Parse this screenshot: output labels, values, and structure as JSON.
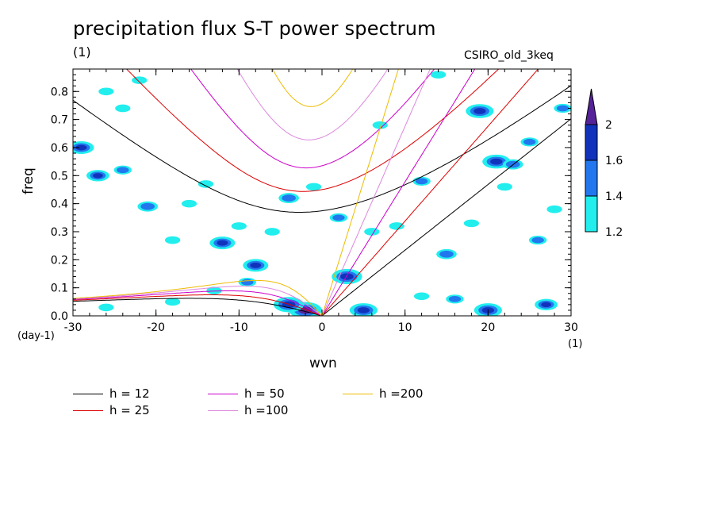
{
  "chart_data": {
    "type": "heatmap",
    "title": "precipitation flux S-T power spectrum",
    "subtitle_left": "(1)",
    "subtitle_right": "CSIRO_old_3keq",
    "xlabel": "wvn",
    "ylabel": "freq",
    "xunit": "(1)",
    "yunit": "(day-1)",
    "xlim": [
      -30,
      30
    ],
    "ylim": [
      0,
      0.88
    ],
    "xticks": [
      -30,
      -20,
      -10,
      0,
      10,
      20,
      30
    ],
    "yticks": [
      0.0,
      0.1,
      0.2,
      0.3,
      0.4,
      0.5,
      0.6,
      0.7,
      0.8
    ],
    "ytick_labels": [
      "0.0",
      "0.1",
      "0.2",
      "0.3",
      "0.4",
      "0.5",
      "0.6",
      "0.7",
      "0.8"
    ],
    "colorbar": {
      "levels": [
        1.2,
        1.4,
        1.6,
        2
      ],
      "colors": [
        "#22eeee",
        "#2277ee",
        "#1133bb",
        "#552299"
      ]
    },
    "dispersion_curves": [
      {
        "name": "h = 12",
        "h": 12,
        "color": "#000000"
      },
      {
        "name": "h = 25",
        "h": 25,
        "color": "#dd0000"
      },
      {
        "name": "h = 50",
        "h": 50,
        "color": "#cc00cc"
      },
      {
        "name": "h =100",
        "h": 100,
        "color": "#dd88dd"
      },
      {
        "name": "h =200",
        "h": 200,
        "color": "#eebb00"
      }
    ],
    "contour_blobs": [
      {
        "x": -26,
        "y": 0.8,
        "v": 1.3
      },
      {
        "x": -24,
        "y": 0.74,
        "v": 1.3
      },
      {
        "x": -22,
        "y": 0.84,
        "v": 1.3
      },
      {
        "x": -29,
        "y": 0.6,
        "v": 1.7
      },
      {
        "x": -24,
        "y": 0.52,
        "v": 1.4
      },
      {
        "x": -27,
        "y": 0.5,
        "v": 1.6
      },
      {
        "x": -21,
        "y": 0.39,
        "v": 1.5
      },
      {
        "x": -16,
        "y": 0.4,
        "v": 1.3
      },
      {
        "x": -18,
        "y": 0.27,
        "v": 1.3
      },
      {
        "x": -14,
        "y": 0.47,
        "v": 1.3
      },
      {
        "x": -12,
        "y": 0.26,
        "v": 1.7
      },
      {
        "x": -10,
        "y": 0.32,
        "v": 1.3
      },
      {
        "x": -8,
        "y": 0.18,
        "v": 1.7
      },
      {
        "x": -6,
        "y": 0.3,
        "v": 1.3
      },
      {
        "x": -4,
        "y": 0.42,
        "v": 1.5
      },
      {
        "x": -2,
        "y": 0.02,
        "v": 2.0
      },
      {
        "x": -4,
        "y": 0.04,
        "v": 1.9
      },
      {
        "x": 3,
        "y": 0.14,
        "v": 1.9
      },
      {
        "x": 5,
        "y": 0.02,
        "v": 1.8
      },
      {
        "x": 2,
        "y": 0.35,
        "v": 1.4
      },
      {
        "x": 6,
        "y": 0.3,
        "v": 1.3
      },
      {
        "x": 9,
        "y": 0.32,
        "v": 1.3
      },
      {
        "x": 12,
        "y": 0.48,
        "v": 1.4
      },
      {
        "x": 15,
        "y": 0.22,
        "v": 1.5
      },
      {
        "x": 18,
        "y": 0.33,
        "v": 1.3
      },
      {
        "x": 19,
        "y": 0.73,
        "v": 1.8
      },
      {
        "x": 21,
        "y": 0.55,
        "v": 1.8
      },
      {
        "x": 23,
        "y": 0.54,
        "v": 1.5
      },
      {
        "x": 25,
        "y": 0.62,
        "v": 1.4
      },
      {
        "x": 22,
        "y": 0.46,
        "v": 1.3
      },
      {
        "x": 29,
        "y": 0.74,
        "v": 1.4
      },
      {
        "x": 27,
        "y": 0.04,
        "v": 1.6
      },
      {
        "x": 20,
        "y": 0.02,
        "v": 1.8
      },
      {
        "x": -26,
        "y": 0.03,
        "v": 1.3
      },
      {
        "x": -18,
        "y": 0.05,
        "v": 1.3
      },
      {
        "x": 12,
        "y": 0.07,
        "v": 1.3
      },
      {
        "x": -1,
        "y": 0.46,
        "v": 1.3
      },
      {
        "x": 7,
        "y": 0.68,
        "v": 1.3
      },
      {
        "x": 14,
        "y": 0.86,
        "v": 1.3
      },
      {
        "x": -9,
        "y": 0.12,
        "v": 1.4
      },
      {
        "x": 26,
        "y": 0.27,
        "v": 1.4
      },
      {
        "x": 28,
        "y": 0.38,
        "v": 1.3
      },
      {
        "x": 16,
        "y": 0.06,
        "v": 1.4
      },
      {
        "x": -13,
        "y": 0.09,
        "v": 1.3
      }
    ]
  }
}
